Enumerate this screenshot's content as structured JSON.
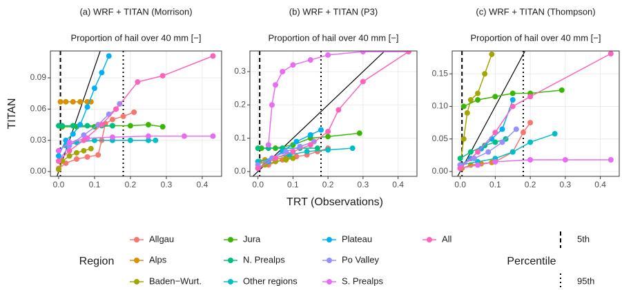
{
  "chart_data": [
    {
      "type": "line",
      "title": "(a) WRF + TITAN (Morrison)",
      "subtitle": "Proportion of hail over 40 mm [−]",
      "xlim": [
        -0.023,
        0.454
      ],
      "xticks": [
        {
          "value": 0,
          "label": "0.0"
        },
        0.1,
        0.2,
        0.3,
        0.4
      ],
      "ylim": [
        -0.0046,
        0.1158
      ],
      "yticks": [
        {
          "value": 0,
          "label": "0.00"
        },
        0.03,
        0.06,
        0.09
      ],
      "grid": true,
      "series": [
        {
          "x": [
            0,
            0.02,
            0.05,
            0.08,
            0.11,
            0.12,
            0.13,
            0.15,
            0.18,
            0.21
          ],
          "values": [
            0.003,
            0.008,
            0.012,
            0.014,
            0.016,
            0.03,
            0.046,
            0.05,
            0.053,
            0.057
          ]
        },
        {
          "x": [
            0.005,
            0.02,
            0.04,
            0.06,
            0.08,
            0.09
          ],
          "values": [
            0.067,
            0.067,
            0.067,
            0.067,
            0.067,
            0.067
          ]
        },
        {
          "x": [
            0,
            0.01,
            0.03,
            0.05,
            0.07,
            0.09
          ],
          "values": [
            0.002,
            0.01,
            0.015,
            0.018,
            0.02,
            0.022
          ]
        },
        {
          "x": [
            0.01,
            0.05,
            0.1,
            0.15,
            0.2,
            0.25,
            0.29
          ],
          "values": [
            0.043,
            0.043,
            0.043,
            0.044,
            0.044,
            0.045,
            0.043
          ]
        },
        {
          "x": [
            0,
            0.01,
            0.04,
            0.08,
            0.12,
            0.15
          ],
          "values": [
            0.044,
            0.044,
            0.044,
            0.044,
            0.044,
            0.044
          ]
        },
        {
          "x": [
            0,
            0.02,
            0.05,
            0.1,
            0.15,
            0.2,
            0.25,
            0.27
          ],
          "values": [
            0.02,
            0.025,
            0.028,
            0.03,
            0.03,
            0.03,
            0.03,
            0.03
          ]
        },
        {
          "x": [
            0,
            0.02,
            0.04,
            0.06,
            0.08,
            0.1,
            0.12,
            0.14
          ],
          "values": [
            0.015,
            0.03,
            0.036,
            0.045,
            0.062,
            0.08,
            0.095,
            0.111
          ]
        },
        {
          "x": [
            0,
            0.03,
            0.07,
            0.11,
            0.14,
            0.16,
            0.17
          ],
          "values": [
            0.01,
            0.025,
            0.035,
            0.045,
            0.055,
            0.06,
            0.065
          ]
        },
        {
          "x": [
            0,
            0.03,
            0.08,
            0.15,
            0.25,
            0.35,
            0.43
          ],
          "values": [
            0.02,
            0.028,
            0.032,
            0.033,
            0.034,
            0.034,
            0.034
          ]
        },
        {
          "x": [
            0,
            0.03,
            0.07,
            0.12,
            0.16,
            0.22,
            0.29,
            0.43
          ],
          "values": [
            0.01,
            0.02,
            0.03,
            0.045,
            0.06,
            0.086,
            0.092,
            0.111
          ]
        }
      ]
    },
    {
      "type": "line",
      "title": "(b) WRF + TITAN (P3)",
      "subtitle": "Proportion of hail over 40 mm [−]",
      "xlim": [
        -0.023,
        0.454
      ],
      "xticks": [
        {
          "value": 0,
          "label": "0.0"
        },
        0.1,
        0.2,
        0.3,
        0.4
      ],
      "ylim": [
        -0.0145,
        0.362
      ],
      "yticks": [
        {
          "value": 0,
          "label": "0.0"
        },
        0.1,
        0.2,
        0.3
      ],
      "grid": true,
      "series": [
        {
          "x": [
            0,
            0.03,
            0.07,
            0.11,
            0.14,
            0.17,
            0.2
          ],
          "values": [
            0.01,
            0.02,
            0.035,
            0.045,
            0.05,
            0.06,
            0.07
          ]
        },
        {
          "x": [
            0.005,
            0.02,
            0.05,
            0.08,
            0.1
          ],
          "values": [
            0.03,
            0.035,
            0.038,
            0.04,
            0.04
          ]
        },
        {
          "x": [
            0,
            0.02,
            0.05,
            0.08,
            0.1
          ],
          "values": [
            0.01,
            0.02,
            0.03,
            0.035,
            0.04
          ]
        },
        {
          "x": [
            0.01,
            0.05,
            0.1,
            0.15,
            0.2,
            0.29
          ],
          "values": [
            0.07,
            0.07,
            0.08,
            0.1,
            0.105,
            0.115
          ]
        },
        {
          "x": [
            0,
            0.03,
            0.07,
            0.12,
            0.17
          ],
          "values": [
            0.07,
            0.07,
            0.07,
            0.07,
            0.07
          ]
        },
        {
          "x": [
            0,
            0.04,
            0.09,
            0.14,
            0.2,
            0.27
          ],
          "values": [
            0.03,
            0.04,
            0.05,
            0.06,
            0.065,
            0.07
          ]
        },
        {
          "x": [
            0,
            0.03,
            0.07,
            0.11,
            0.15,
            0.18
          ],
          "values": [
            0.01,
            0.03,
            0.06,
            0.09,
            0.11,
            0.125
          ]
        },
        {
          "x": [
            0,
            0.04,
            0.08,
            0.12,
            0.16
          ],
          "values": [
            0.02,
            0.04,
            0.06,
            0.075,
            0.09
          ]
        },
        {
          "x": [
            0.03,
            0.04,
            0.05,
            0.07,
            0.1,
            0.15,
            0.2,
            0.3,
            0.43
          ],
          "values": [
            0.08,
            0.2,
            0.26,
            0.3,
            0.32,
            0.335,
            0.35,
            0.36,
            0.36
          ]
        },
        {
          "x": [
            0,
            0.05,
            0.1,
            0.15,
            0.2,
            0.23,
            0.3,
            0.43
          ],
          "values": [
            0.01,
            0.04,
            0.06,
            0.08,
            0.12,
            0.185,
            0.27,
            0.36
          ]
        }
      ]
    },
    {
      "type": "line",
      "title": "(c) WRF + TITAN (Thompson)",
      "subtitle": "Proportion of hail over 40 mm [−]",
      "xlim": [
        -0.023,
        0.454
      ],
      "xticks": [
        {
          "value": 0,
          "label": "0.0"
        },
        0.1,
        0.2,
        0.3,
        0.4
      ],
      "ylim": [
        -0.0074,
        0.1851
      ],
      "yticks": [
        {
          "value": 0,
          "label": "0.00"
        },
        0.05,
        {
          "value": 0.1,
          "label": "0.10"
        },
        0.15
      ],
      "grid": true,
      "series": [
        {
          "x": [
            0,
            0.05,
            0.1,
            0.15,
            0.18,
            0.2
          ],
          "values": [
            0.005,
            0.01,
            0.015,
            0.03,
            0.06,
            0.075
          ]
        },
        {
          "x": [
            0.005,
            0.03,
            0.06,
            0.09
          ],
          "values": [
            0.005,
            0.01,
            0.012,
            0.014
          ]
        },
        {
          "x": [
            0,
            0.01,
            0.02,
            0.03,
            0.05,
            0.07,
            0.09
          ],
          "values": [
            0.01,
            0.05,
            0.09,
            0.11,
            0.12,
            0.15,
            0.18
          ]
        },
        {
          "x": [
            0.01,
            0.05,
            0.1,
            0.15,
            0.2,
            0.29
          ],
          "values": [
            0.1,
            0.11,
            0.115,
            0.12,
            0.12,
            0.125
          ]
        },
        {
          "x": [
            0,
            0.03,
            0.07,
            0.1,
            0.13
          ],
          "values": [
            0.02,
            0.03,
            0.04,
            0.045,
            0.05
          ]
        },
        {
          "x": [
            0,
            0.05,
            0.1,
            0.15,
            0.2,
            0.27
          ],
          "values": [
            0.01,
            0.015,
            0.02,
            0.03,
            0.045,
            0.058
          ]
        },
        {
          "x": [
            0,
            0.03,
            0.06,
            0.09,
            0.12,
            0.15
          ],
          "values": [
            0.01,
            0.02,
            0.035,
            0.05,
            0.065,
            0.11
          ]
        },
        {
          "x": [
            0,
            0.04,
            0.08,
            0.12,
            0.16
          ],
          "values": [
            0.01,
            0.02,
            0.03,
            0.045,
            0.065
          ]
        },
        {
          "x": [
            0,
            0.05,
            0.1,
            0.2,
            0.3,
            0.43
          ],
          "values": [
            0.005,
            0.01,
            0.015,
            0.018,
            0.018,
            0.018
          ]
        },
        {
          "x": [
            0,
            0.05,
            0.1,
            0.15,
            0.2,
            0.43
          ],
          "values": [
            0.005,
            0.03,
            0.06,
            0.1,
            0.115,
            0.181
          ]
        }
      ]
    }
  ],
  "xlabel": "TRT (Observations)",
  "ylabel": "TITAN",
  "legend": {
    "title": "Region",
    "items": [
      {
        "name": "Allgau",
        "color": "#F8766D"
      },
      {
        "name": "Alps",
        "color": "#D89000"
      },
      {
        "name": "Baden−Wurt.",
        "color": "#A3A500"
      },
      {
        "name": "Jura",
        "color": "#39B600"
      },
      {
        "name": "N. Prealps",
        "color": "#00BF7D"
      },
      {
        "name": "Other regions",
        "color": "#00BFC4"
      },
      {
        "name": "Plateau",
        "color": "#00B0F6"
      },
      {
        "name": "Po Valley",
        "color": "#9590FF"
      },
      {
        "name": "S. Prealps",
        "color": "#E76BF3"
      },
      {
        "name": "All",
        "color": "#FF62BC"
      }
    ]
  },
  "percentiles": {
    "title": "Percentile",
    "items": [
      {
        "label": "5th",
        "value": 0.005,
        "dash": "dashed"
      },
      {
        "label": "95th",
        "value": 0.18,
        "dash": "dotted"
      }
    ]
  }
}
